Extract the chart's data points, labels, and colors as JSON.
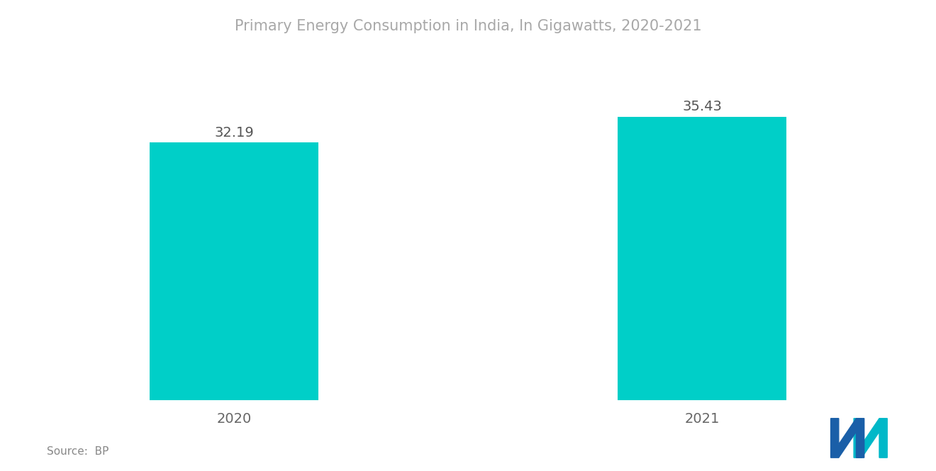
{
  "title": "Primary Energy Consumption in India, In Gigawatts, 2020-2021",
  "title_color": "#a8a8a8",
  "title_fontsize": 15,
  "categories": [
    "2020",
    "2021"
  ],
  "values": [
    32.19,
    35.43
  ],
  "bar_color": "#00CFC8",
  "value_labels": [
    "32.19",
    "35.43"
  ],
  "value_fontsize": 14,
  "value_color": "#555555",
  "xlabel_fontsize": 14,
  "xlabel_color": "#666666",
  "source_text": "Source:  BP",
  "source_fontsize": 11,
  "source_color": "#888888",
  "background_color": "#ffffff",
  "ylim": [
    0,
    40
  ],
  "logo_dark_blue": "#1a5fa8",
  "logo_teal": "#00b8c8"
}
